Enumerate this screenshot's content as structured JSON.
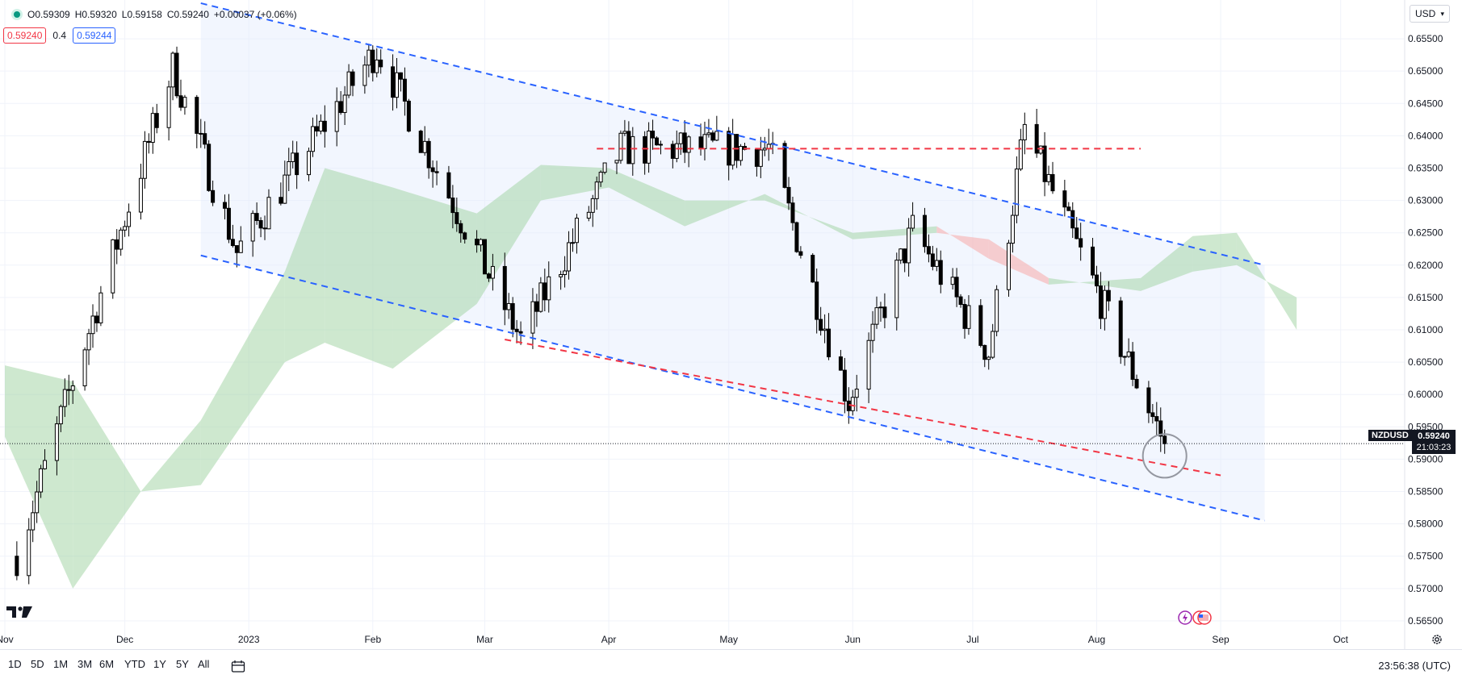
{
  "legend": {
    "open": "O0.59309",
    "high": "H0.59320",
    "low": "L0.59158",
    "close": "C0.59240",
    "change": "+0.00037 (+0.06%)",
    "sell_price": "0.59240",
    "spread": "0.4",
    "buy_price": "0.59244"
  },
  "currency": {
    "selected": "USD"
  },
  "symbol": {
    "name": "NZDUSD",
    "last_price": "0.59240",
    "countdown": "21:03:23"
  },
  "ranges": [
    "1D",
    "5D",
    "1M",
    "3M",
    "6M",
    "YTD",
    "1Y",
    "5Y",
    "All"
  ],
  "clock": "23:56:38 (UTC)",
  "icons": {
    "logo": "tradingview-logo-icon",
    "calendar": "calendar-icon",
    "settings": "gear-icon",
    "events": "economic-events-icon"
  },
  "colors": {
    "up": "#ffffff",
    "down": "#000000",
    "channel": "#2962ff",
    "support": "#f23645",
    "kumo_bull": "#a5d6a7",
    "kumo_bear": "#f7a9a7",
    "channel_fill": "#e3ecfc"
  },
  "chart_data": {
    "type": "candlestick",
    "symbol": "NZDUSD",
    "timeframe": "daily",
    "y_ticks": [
      "0.65500",
      "0.65000",
      "0.64500",
      "0.64000",
      "0.63500",
      "0.63000",
      "0.62500",
      "0.62000",
      "0.61500",
      "0.61000",
      "0.60500",
      "0.60000",
      "0.59500",
      "0.59000",
      "0.58500",
      "0.58000",
      "0.57500",
      "0.57000",
      "0.56500"
    ],
    "y_tick_values": [
      0.655,
      0.65,
      0.645,
      0.64,
      0.635,
      0.63,
      0.625,
      0.62,
      0.615,
      0.61,
      0.605,
      0.6,
      0.595,
      0.59,
      0.585,
      0.58,
      0.575,
      0.57,
      0.565
    ],
    "ylim": [
      0.5625,
      0.6585
    ],
    "x_ticks": [
      {
        "label": "Nov",
        "date": "2022-11-01"
      },
      {
        "label": "Dec",
        "date": "2022-12-01"
      },
      {
        "label": "2023",
        "date": "2023-01-01"
      },
      {
        "label": "Feb",
        "date": "2023-02-01"
      },
      {
        "label": "Mar",
        "date": "2023-03-01"
      },
      {
        "label": "Apr",
        "date": "2023-04-01"
      },
      {
        "label": "May",
        "date": "2023-05-01"
      },
      {
        "label": "Jun",
        "date": "2023-06-01"
      },
      {
        "label": "Jul",
        "date": "2023-07-01"
      },
      {
        "label": "Aug",
        "date": "2023-08-01"
      },
      {
        "label": "Sep",
        "date": "2023-09-01"
      },
      {
        "label": "Oct",
        "date": "2023-10-01"
      }
    ],
    "xlim": [
      "2022-11-01",
      "2023-10-16"
    ],
    "key_prices": [
      {
        "date": "2022-11-04",
        "price": 0.575
      },
      {
        "date": "2022-12-13",
        "price": 0.6505
      },
      {
        "date": "2022-12-29",
        "price": 0.622
      },
      {
        "date": "2023-02-02",
        "price": 0.6535
      },
      {
        "date": "2023-03-10",
        "price": 0.6085
      },
      {
        "date": "2023-04-04",
        "price": 0.638
      },
      {
        "date": "2023-05-11",
        "price": 0.638
      },
      {
        "date": "2023-05-31",
        "price": 0.599
      },
      {
        "date": "2023-06-16",
        "price": 0.6255
      },
      {
        "date": "2023-07-05",
        "price": 0.6065
      },
      {
        "date": "2023-07-14",
        "price": 0.641
      },
      {
        "date": "2023-08-18",
        "price": 0.5924
      }
    ],
    "last_price": 0.5924,
    "trendlines": [
      {
        "name": "channel-upper",
        "style": "dashed",
        "color": "#2962ff",
        "points": [
          [
            "2022-12-20",
            0.6605
          ],
          [
            "2023-09-12",
            0.62
          ]
        ]
      },
      {
        "name": "channel-lower",
        "style": "dashed",
        "color": "#2962ff",
        "points": [
          [
            "2022-12-20",
            0.6215
          ],
          [
            "2023-09-12",
            0.5805
          ]
        ]
      },
      {
        "name": "resistance",
        "style": "dashed",
        "color": "#f23645",
        "points": [
          [
            "2023-03-29",
            0.638
          ],
          [
            "2023-08-12",
            0.638
          ]
        ]
      },
      {
        "name": "support",
        "style": "dashed",
        "color": "#f23645",
        "points": [
          [
            "2023-03-06",
            0.6085
          ],
          [
            "2023-09-01",
            0.5875
          ]
        ]
      }
    ],
    "ichimoku_cloud": [
      {
        "date": "2022-11-01",
        "span_a": 0.6045,
        "span_b": 0.5935
      },
      {
        "date": "2022-11-18",
        "span_a": 0.602,
        "span_b": 0.57
      },
      {
        "date": "2022-12-05",
        "span_a": 0.585,
        "span_b": 0.585
      },
      {
        "date": "2022-12-20",
        "span_a": 0.596,
        "span_b": 0.586
      },
      {
        "date": "2023-01-10",
        "span_a": 0.619,
        "span_b": 0.605
      },
      {
        "date": "2023-01-20",
        "span_a": 0.635,
        "span_b": 0.608
      },
      {
        "date": "2023-02-06",
        "span_a": 0.632,
        "span_b": 0.604
      },
      {
        "date": "2023-02-27",
        "span_a": 0.628,
        "span_b": 0.614
      },
      {
        "date": "2023-03-15",
        "span_a": 0.6355,
        "span_b": 0.63
      },
      {
        "date": "2023-04-01",
        "span_a": 0.635,
        "span_b": 0.632
      },
      {
        "date": "2023-04-20",
        "span_a": 0.63,
        "span_b": 0.626
      },
      {
        "date": "2023-05-10",
        "span_a": 0.63,
        "span_b": 0.631
      },
      {
        "date": "2023-06-01",
        "span_a": 0.625,
        "span_b": 0.624
      },
      {
        "date": "2023-06-22",
        "span_a": 0.626,
        "span_b": 0.625
      },
      {
        "date": "2023-07-05",
        "span_a": 0.621,
        "span_b": 0.624
      },
      {
        "date": "2023-07-20",
        "span_a": 0.617,
        "span_b": 0.618
      },
      {
        "date": "2023-08-12",
        "span_a": 0.618,
        "span_b": 0.616
      },
      {
        "date": "2023-08-25",
        "span_a": 0.6245,
        "span_b": 0.619
      },
      {
        "date": "2023-09-05",
        "span_a": 0.625,
        "span_b": 0.62
      },
      {
        "date": "2023-09-20",
        "span_a": 0.61,
        "span_b": 0.615
      }
    ],
    "highlight_circle": {
      "date": "2023-08-18",
      "price": 0.5905
    }
  }
}
